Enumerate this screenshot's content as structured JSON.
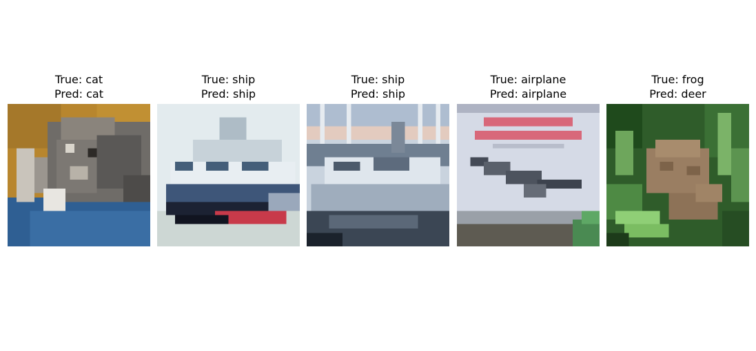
{
  "panels": [
    {
      "true_label": "True: cat",
      "pred_label": "Pred: cat",
      "subject": "cat"
    },
    {
      "true_label": "True: ship",
      "pred_label": "Pred: ship",
      "subject": "ship"
    },
    {
      "true_label": "True: ship",
      "pred_label": "Pred: ship",
      "subject": "ship"
    },
    {
      "true_label": "True: airplane",
      "pred_label": "Pred: airplane",
      "subject": "airplane"
    },
    {
      "true_label": "True: frog",
      "pred_label": "Pred: deer",
      "subject": "frog"
    }
  ]
}
